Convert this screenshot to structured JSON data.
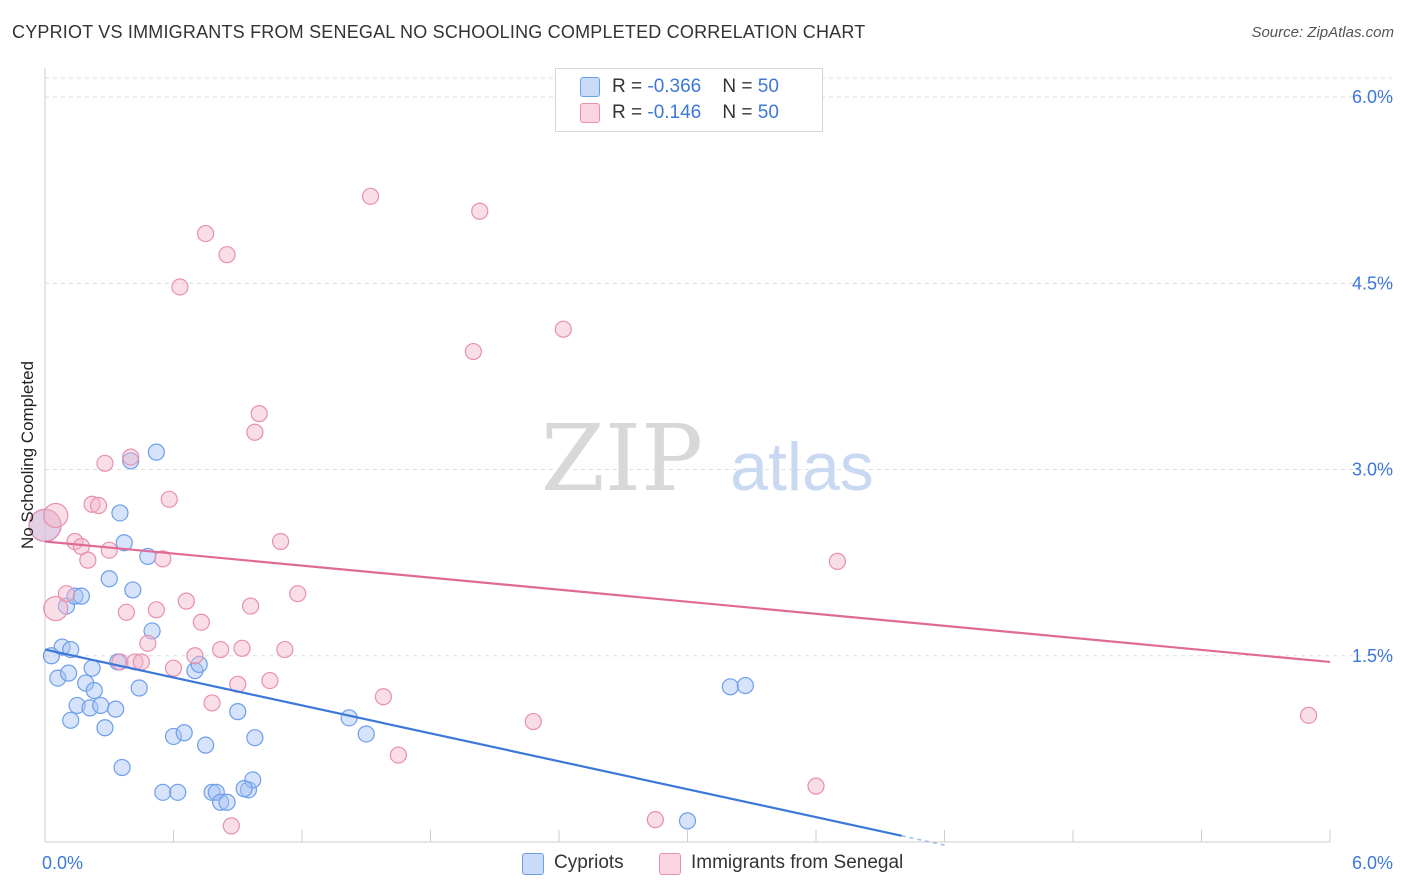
{
  "header": {
    "title": "CYPRIOT VS IMMIGRANTS FROM SENEGAL NO SCHOOLING COMPLETED CORRELATION CHART",
    "source": "Source: ZipAtlas.com"
  },
  "watermark": {
    "zip": "ZIP",
    "atlas": "atlas"
  },
  "stats": [
    {
      "r_label": "R = ",
      "r_value": "-0.366",
      "n_label": "N = ",
      "n_value": "50",
      "color": "#a4c2f4"
    },
    {
      "r_label": "R = ",
      "r_value": "-0.146",
      "n_label": "N = ",
      "n_value": "50",
      "color": "#f4b6c9"
    }
  ],
  "legend": [
    {
      "label": "Cypriots",
      "color": "#a4c2f4"
    },
    {
      "label": "Immigrants from Senegal",
      "color": "#f4b6c9"
    }
  ],
  "colors": {
    "blue_fill": "#a4c2f4",
    "blue_line": "#3c78d8",
    "pink_fill": "#f4b6c9",
    "pink_line": "#e06a96",
    "tick_text": "#3c78d8",
    "grid": "#dddddd"
  },
  "chart_data": {
    "type": "scatter",
    "title": "CYPRIOT VS IMMIGRANTS FROM SENEGAL NO SCHOOLING COMPLETED CORRELATION CHART",
    "xlabel": "",
    "ylabel": "No Schooling Completed",
    "xlim": [
      0,
      6
    ],
    "ylim": [
      0,
      6.2
    ],
    "x_tick_labels": [
      {
        "value": 0,
        "label": "0.0%"
      },
      {
        "value": 6,
        "label": "6.0%"
      }
    ],
    "y_tick_labels": [
      {
        "value": 1.5,
        "label": "1.5%"
      },
      {
        "value": 3.0,
        "label": "3.0%"
      },
      {
        "value": 4.5,
        "label": "4.5%"
      },
      {
        "value": 6.0,
        "label": "6.0%"
      }
    ],
    "grid": true,
    "legend_position": "bottom-center",
    "series": [
      {
        "name": "Cypriots",
        "color": "#a4c2f4",
        "line_color": "#3c78d8",
        "trend": [
          [
            0,
            1.55
          ],
          [
            4.0,
            0.05
          ]
        ],
        "points": [
          [
            0.0,
            2.55
          ],
          [
            0.03,
            1.5
          ],
          [
            0.06,
            1.32
          ],
          [
            0.08,
            1.57
          ],
          [
            0.1,
            1.9
          ],
          [
            0.11,
            1.36
          ],
          [
            0.12,
            1.55
          ],
          [
            0.14,
            1.98
          ],
          [
            0.15,
            1.1
          ],
          [
            0.17,
            1.98
          ],
          [
            0.19,
            1.28
          ],
          [
            0.21,
            1.08
          ],
          [
            0.23,
            1.22
          ],
          [
            0.26,
            1.1
          ],
          [
            0.28,
            0.92
          ],
          [
            0.3,
            2.12
          ],
          [
            0.33,
            1.07
          ],
          [
            0.34,
            1.45
          ],
          [
            0.37,
            2.41
          ],
          [
            0.4,
            3.07
          ],
          [
            0.41,
            2.03
          ],
          [
            0.44,
            1.24
          ],
          [
            0.48,
            2.3
          ],
          [
            0.5,
            1.7
          ],
          [
            0.52,
            3.14
          ],
          [
            0.55,
            0.4
          ],
          [
            0.6,
            0.85
          ],
          [
            0.65,
            0.88
          ],
          [
            0.62,
            0.4
          ],
          [
            0.7,
            1.38
          ],
          [
            0.72,
            1.43
          ],
          [
            0.75,
            0.78
          ],
          [
            0.78,
            0.4
          ],
          [
            0.8,
            0.4
          ],
          [
            0.82,
            0.32
          ],
          [
            0.85,
            0.32
          ],
          [
            0.9,
            1.05
          ],
          [
            0.95,
            0.42
          ],
          [
            0.98,
            0.84
          ],
          [
            0.35,
            2.65
          ],
          [
            0.36,
            0.6
          ],
          [
            1.42,
            1.0
          ],
          [
            1.5,
            0.87
          ],
          [
            3.0,
            0.17
          ],
          [
            3.2,
            1.25
          ],
          [
            3.27,
            1.26
          ],
          [
            0.97,
            0.5
          ],
          [
            0.12,
            0.98
          ],
          [
            0.93,
            0.43
          ],
          [
            0.22,
            1.4
          ]
        ]
      },
      {
        "name": "Immigrants from Senegal",
        "color": "#f4b6c9",
        "line_color": "#e06a96",
        "trend": [
          [
            0,
            2.42
          ],
          [
            6.0,
            1.45
          ]
        ],
        "points": [
          [
            0.0,
            2.55
          ],
          [
            0.05,
            2.63
          ],
          [
            0.05,
            1.88
          ],
          [
            0.1,
            2.0
          ],
          [
            0.14,
            2.42
          ],
          [
            0.17,
            2.38
          ],
          [
            0.2,
            2.27
          ],
          [
            0.22,
            2.72
          ],
          [
            0.25,
            2.71
          ],
          [
            0.28,
            3.05
          ],
          [
            0.3,
            2.35
          ],
          [
            0.35,
            1.45
          ],
          [
            0.38,
            1.85
          ],
          [
            0.4,
            3.1
          ],
          [
            0.42,
            1.45
          ],
          [
            0.45,
            1.45
          ],
          [
            0.48,
            1.6
          ],
          [
            0.52,
            1.87
          ],
          [
            0.55,
            2.28
          ],
          [
            0.58,
            2.76
          ],
          [
            0.6,
            1.4
          ],
          [
            0.63,
            4.47
          ],
          [
            0.66,
            1.94
          ],
          [
            0.7,
            1.5
          ],
          [
            0.73,
            1.77
          ],
          [
            0.75,
            4.9
          ],
          [
            0.78,
            1.12
          ],
          [
            0.82,
            1.55
          ],
          [
            0.85,
            4.73
          ],
          [
            0.87,
            0.13
          ],
          [
            0.9,
            1.27
          ],
          [
            0.92,
            1.56
          ],
          [
            0.96,
            1.9
          ],
          [
            0.98,
            3.3
          ],
          [
            1.0,
            3.45
          ],
          [
            1.05,
            1.3
          ],
          [
            1.1,
            2.42
          ],
          [
            1.12,
            1.55
          ],
          [
            1.18,
            2.0
          ],
          [
            1.52,
            5.2
          ],
          [
            1.58,
            1.17
          ],
          [
            1.65,
            0.7
          ],
          [
            2.0,
            3.95
          ],
          [
            2.03,
            5.08
          ],
          [
            2.28,
            0.97
          ],
          [
            2.42,
            4.13
          ],
          [
            2.85,
            0.18
          ],
          [
            3.6,
            0.45
          ],
          [
            3.7,
            2.26
          ],
          [
            5.9,
            1.02
          ]
        ]
      }
    ]
  }
}
